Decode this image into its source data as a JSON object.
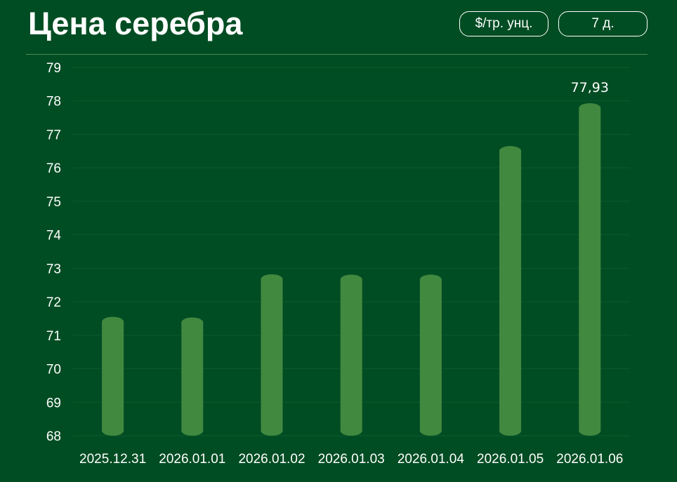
{
  "header": {
    "title": "Цена серебра",
    "unit_button": "$/тр. унц.",
    "period_button": "7 д."
  },
  "colors": {
    "background": "#014d23",
    "bar": "#428940",
    "grid": "#0d5a2b",
    "text": "#ffffff"
  },
  "chart_data": {
    "type": "bar",
    "title": "Цена серебра",
    "xlabel": "",
    "ylabel": "",
    "categories": [
      "2025.12.31",
      "2026.01.01",
      "2026.01.02",
      "2026.01.03",
      "2026.01.04",
      "2026.01.05",
      "2026.01.06"
    ],
    "values": [
      71.55,
      71.53,
      72.82,
      72.81,
      72.81,
      76.65,
      77.93
    ],
    "ylim": [
      68,
      79
    ],
    "yticks": [
      68,
      69,
      70,
      71,
      72,
      73,
      74,
      75,
      76,
      77,
      78,
      79
    ],
    "grid": true,
    "annotations": [
      {
        "category": "2026.01.06",
        "text": "77,93"
      }
    ]
  }
}
